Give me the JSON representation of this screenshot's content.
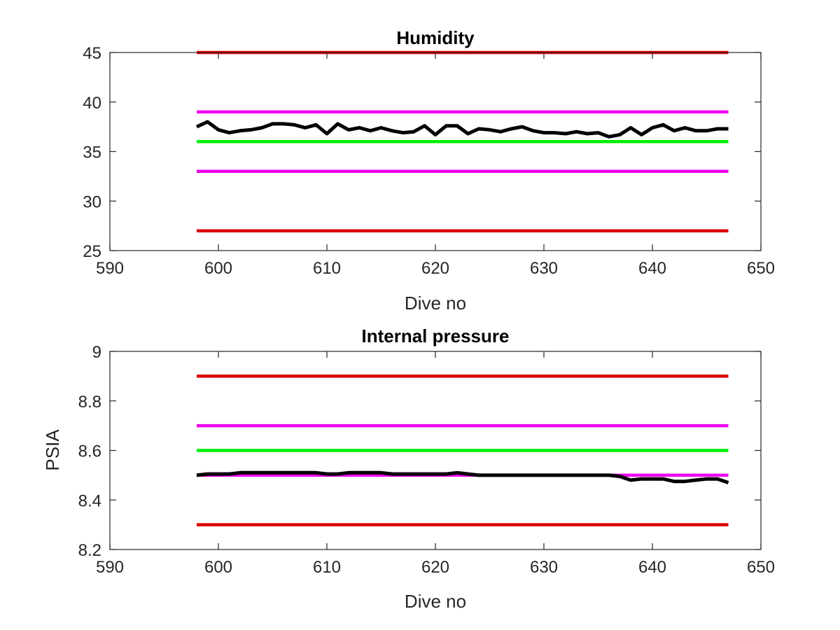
{
  "chart_data": [
    {
      "type": "line",
      "title": "Humidity",
      "xlabel": "Dive no",
      "ylabel": "",
      "xlim": [
        590,
        650
      ],
      "ylim": [
        25,
        45
      ],
      "xticks": [
        590,
        600,
        610,
        620,
        630,
        640,
        650
      ],
      "yticks": [
        25,
        30,
        35,
        40,
        45
      ],
      "grid": false,
      "series": [
        {
          "color": "#dd0000",
          "x": [
            598,
            647
          ],
          "values": [
            45,
            45
          ]
        },
        {
          "color": "#ee00ee",
          "x": [
            598,
            647
          ],
          "values": [
            39,
            39
          ]
        },
        {
          "color": "#00ee00",
          "x": [
            598,
            647
          ],
          "values": [
            36,
            36
          ]
        },
        {
          "color": "#ee00ee",
          "x": [
            598,
            647
          ],
          "values": [
            33,
            33
          ]
        },
        {
          "color": "#dd0000",
          "x": [
            598,
            647
          ],
          "values": [
            27,
            27
          ]
        },
        {
          "color": "#000000",
          "x": [
            598,
            599,
            600,
            601,
            602,
            603,
            604,
            605,
            606,
            607,
            608,
            609,
            610,
            611,
            612,
            613,
            614,
            615,
            616,
            617,
            618,
            619,
            620,
            621,
            622,
            623,
            624,
            625,
            626,
            627,
            628,
            629,
            630,
            631,
            632,
            633,
            634,
            635,
            636,
            637,
            638,
            639,
            640,
            641,
            642,
            643,
            644,
            645,
            646,
            647
          ],
          "values": [
            37.5,
            38.0,
            37.2,
            36.9,
            37.1,
            37.2,
            37.4,
            37.8,
            37.8,
            37.7,
            37.4,
            37.7,
            36.8,
            37.8,
            37.2,
            37.4,
            37.1,
            37.4,
            37.1,
            36.9,
            37.0,
            37.6,
            36.7,
            37.6,
            37.6,
            36.8,
            37.3,
            37.2,
            37.0,
            37.3,
            37.5,
            37.1,
            36.9,
            36.9,
            36.8,
            37.0,
            36.8,
            36.9,
            36.5,
            36.7,
            37.4,
            36.7,
            37.4,
            37.7,
            37.1,
            37.4,
            37.1,
            37.1,
            37.3,
            37.3
          ]
        }
      ]
    },
    {
      "type": "line",
      "title": "Internal pressure",
      "xlabel": "Dive no",
      "ylabel": "PSIA",
      "xlim": [
        590,
        650
      ],
      "ylim": [
        8.2,
        9.0
      ],
      "xticks": [
        590,
        600,
        610,
        620,
        630,
        640,
        650
      ],
      "yticks": [
        8.2,
        8.4,
        8.6,
        8.8,
        9.0
      ],
      "yticklabels": [
        "8.2",
        "8.4",
        "8.6",
        "8.8",
        "9"
      ],
      "grid": false,
      "series": [
        {
          "color": "#dd0000",
          "x": [
            598,
            647
          ],
          "values": [
            8.9,
            8.9
          ]
        },
        {
          "color": "#ee00ee",
          "x": [
            598,
            647
          ],
          "values": [
            8.7,
            8.7
          ]
        },
        {
          "color": "#00ee00",
          "x": [
            598,
            647
          ],
          "values": [
            8.6,
            8.6
          ]
        },
        {
          "color": "#ee00ee",
          "x": [
            598,
            647
          ],
          "values": [
            8.5,
            8.5
          ]
        },
        {
          "color": "#dd0000",
          "x": [
            598,
            647
          ],
          "values": [
            8.3,
            8.3
          ]
        },
        {
          "color": "#000000",
          "x": [
            598,
            599,
            600,
            601,
            602,
            603,
            604,
            605,
            606,
            607,
            608,
            609,
            610,
            611,
            612,
            613,
            614,
            615,
            616,
            617,
            618,
            619,
            620,
            621,
            622,
            623,
            624,
            625,
            626,
            627,
            628,
            629,
            630,
            631,
            632,
            633,
            634,
            635,
            636,
            637,
            638,
            639,
            640,
            641,
            642,
            643,
            644,
            645,
            646,
            647
          ],
          "values": [
            8.5,
            8.505,
            8.505,
            8.505,
            8.51,
            8.51,
            8.51,
            8.51,
            8.51,
            8.51,
            8.51,
            8.51,
            8.505,
            8.505,
            8.51,
            8.51,
            8.51,
            8.51,
            8.505,
            8.505,
            8.505,
            8.505,
            8.505,
            8.505,
            8.51,
            8.505,
            8.5,
            8.5,
            8.5,
            8.5,
            8.5,
            8.5,
            8.5,
            8.5,
            8.5,
            8.5,
            8.5,
            8.5,
            8.5,
            8.495,
            8.48,
            8.485,
            8.485,
            8.485,
            8.475,
            8.475,
            8.48,
            8.485,
            8.485,
            8.47
          ]
        }
      ]
    }
  ]
}
